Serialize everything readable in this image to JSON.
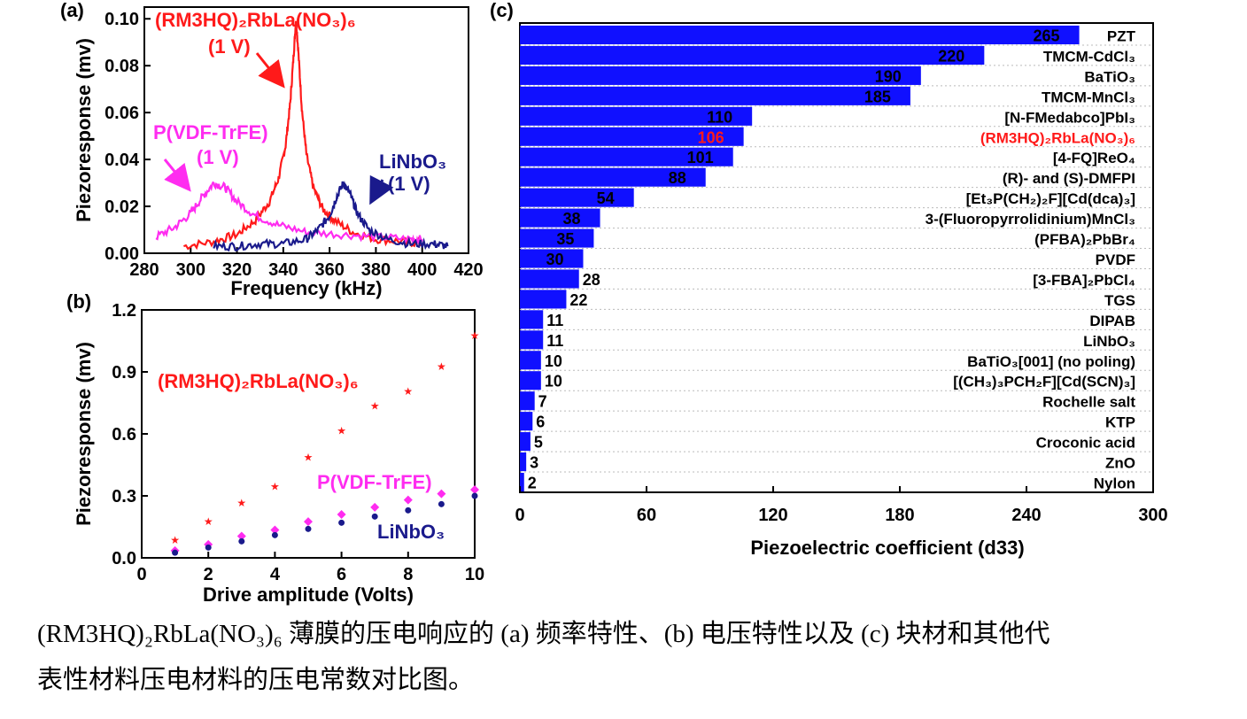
{
  "colors": {
    "red": "#ff1a1a",
    "magenta": "#ff2cf0",
    "navy": "#1a1a8c",
    "blue": "#1010ff"
  },
  "caption": {
    "line1": "(RM3HQ)₂RbLa(NO₃)₆ 薄膜的压电响应的 (a) 频率特性、(b) 电压特性以及 (c) 块材和其他代",
    "line2": "表性材料压电材料的压电常数对比图。"
  },
  "chart_data": [
    {
      "panel_label": "(a)",
      "type": "line",
      "xlabel": "Frequency (kHz)",
      "ylabel": "Piezoresponse (mv)",
      "xlim": [
        280,
        420
      ],
      "ylim": [
        0,
        0.105
      ],
      "xticks": [
        "280",
        "300",
        "320",
        "340",
        "360",
        "380",
        "400",
        "420"
      ],
      "yticks": [
        "0.00",
        "0.02",
        "0.04",
        "0.06",
        "0.08",
        "0.10"
      ],
      "series": [
        {
          "name": "(RM3HQ)₂RbLa(NO₃)₆",
          "color": "#ff1a1a",
          "x": [
            297,
            310,
            320,
            328,
            334,
            338,
            341,
            343,
            344.5,
            345.5,
            346.5,
            348,
            350,
            353,
            357,
            362,
            370,
            380,
            392,
            400
          ],
          "y": [
            0.003,
            0.005,
            0.008,
            0.014,
            0.022,
            0.032,
            0.046,
            0.064,
            0.085,
            0.1,
            0.086,
            0.062,
            0.042,
            0.028,
            0.019,
            0.014,
            0.009,
            0.006,
            0.005,
            0.004
          ]
        },
        {
          "name": "P(VDF-TrFE)",
          "color": "#ff2cf0",
          "x": [
            285,
            293,
            300,
            305,
            310,
            315,
            320,
            328,
            338,
            350,
            365,
            380,
            395,
            400
          ],
          "y": [
            0.007,
            0.011,
            0.017,
            0.024,
            0.03,
            0.028,
            0.022,
            0.016,
            0.012,
            0.009,
            0.008,
            0.007,
            0.006,
            0.006
          ]
        },
        {
          "name": "LiNbO₃",
          "color": "#1a1a8c",
          "x": [
            310,
            320,
            330,
            340,
            350,
            355,
            360,
            363,
            366,
            369,
            372,
            377,
            385,
            395,
            405,
            411
          ],
          "y": [
            0.003,
            0.003,
            0.004,
            0.004,
            0.006,
            0.01,
            0.016,
            0.024,
            0.03,
            0.025,
            0.017,
            0.01,
            0.006,
            0.004,
            0.004,
            0.003
          ]
        }
      ],
      "annotations": [
        {
          "text": "(1 V)",
          "series": "(RM3HQ)₂RbLa(NO₃)₆"
        },
        {
          "text": "(1 V)",
          "series": "P(VDF-TrFE)"
        },
        {
          "text": "(1 V)",
          "series": "LiNbO₃"
        }
      ]
    },
    {
      "panel_label": "(b)",
      "type": "scatter",
      "xlabel": "Drive amplitude (Volts)",
      "ylabel": "Piezoresponse (mv)",
      "xlim": [
        0,
        10
      ],
      "ylim": [
        0,
        1.2
      ],
      "xticks": [
        "0",
        "2",
        "4",
        "6",
        "8",
        "10"
      ],
      "yticks": [
        "0.0",
        "0.3",
        "0.6",
        "0.9",
        "1.2"
      ],
      "series": [
        {
          "name": "(RM3HQ)₂RbLa(NO₃)₆",
          "color": "#ff1a1a",
          "marker": "star",
          "x": [
            1,
            2,
            3,
            4,
            5,
            6,
            7,
            8,
            9,
            10
          ],
          "y": [
            0.09,
            0.18,
            0.27,
            0.35,
            0.49,
            0.62,
            0.74,
            0.81,
            0.93,
            1.08
          ]
        },
        {
          "name": "P(VDF-TrFE)",
          "color": "#ff2cf0",
          "marker": "diamond",
          "x": [
            1,
            2,
            3,
            4,
            5,
            6,
            7,
            8,
            9,
            10
          ],
          "y": [
            0.035,
            0.065,
            0.105,
            0.135,
            0.175,
            0.21,
            0.245,
            0.28,
            0.31,
            0.33
          ]
        },
        {
          "name": "LiNbO₃",
          "color": "#1a1a8c",
          "marker": "circle",
          "x": [
            1,
            2,
            3,
            4,
            5,
            6,
            7,
            8,
            9,
            10
          ],
          "y": [
            0.025,
            0.05,
            0.08,
            0.11,
            0.14,
            0.17,
            0.2,
            0.23,
            0.26,
            0.3
          ]
        }
      ]
    },
    {
      "panel_label": "(c)",
      "type": "bar",
      "orientation": "horizontal",
      "xlabel": "Piezoelectric coefficient (d33)",
      "xlim": [
        0,
        300
      ],
      "xticks": [
        "0",
        "60",
        "120",
        "180",
        "240",
        "300"
      ],
      "bar_color": "#1010ff",
      "categories": [
        {
          "name": "PZT",
          "value": 265
        },
        {
          "name": "TMCM-CdCl₃",
          "value": 220
        },
        {
          "name": "BaTiO₃",
          "value": 190
        },
        {
          "name": "TMCM-MnCl₃",
          "value": 185
        },
        {
          "name": "[N-FMedabco]PbI₃",
          "value": 110
        },
        {
          "name": "(RM3HQ)₂RbLa(NO₃)₆",
          "value": 106,
          "highlight": true
        },
        {
          "name": "[4-FQ]ReO₄",
          "value": 101
        },
        {
          "name": "(R)- and (S)-DMFPI",
          "value": 88
        },
        {
          "name": "[Et₃P(CH₂)₂F][Cd(dca)₃]",
          "value": 54
        },
        {
          "name": "3-(Fluoropyrrolidinium)MnCl₃",
          "value": 38
        },
        {
          "name": "(PFBA)₂PbBr₄",
          "value": 35
        },
        {
          "name": "PVDF",
          "value": 30
        },
        {
          "name": "[3-FBA]₂PbCl₄",
          "value": 28
        },
        {
          "name": "TGS",
          "value": 22
        },
        {
          "name": "DIPAB",
          "value": 11
        },
        {
          "name": "LiNbO₃",
          "value": 11
        },
        {
          "name": "BaTiO₃[001] (no poling)",
          "value": 10
        },
        {
          "name": "[(CH₃)₃PCH₂F][Cd(SCN)₃]",
          "value": 10
        },
        {
          "name": "Rochelle salt",
          "value": 7
        },
        {
          "name": "KTP",
          "value": 6
        },
        {
          "name": "Croconic acid",
          "value": 5
        },
        {
          "name": "ZnO",
          "value": 3
        },
        {
          "name": "Nylon",
          "value": 2
        }
      ]
    }
  ]
}
